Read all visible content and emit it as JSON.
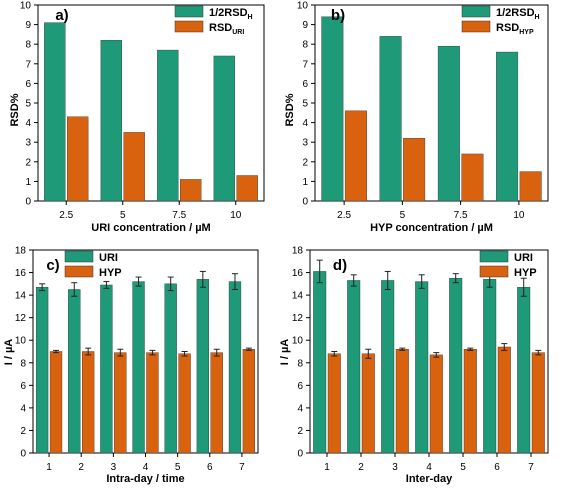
{
  "colors": {
    "series1": "#1f9a78",
    "series2": "#d9620f",
    "axis": "#000000"
  },
  "chart_data": [
    {
      "type": "bar",
      "panel_label": "a)",
      "categories": [
        "2.5",
        "5",
        "7.5",
        "10"
      ],
      "series": [
        {
          "name": "1/2RSD",
          "name_sub": "H",
          "values": [
            9.1,
            8.2,
            7.7,
            7.4
          ]
        },
        {
          "name": "RSD",
          "name_sub": "URI",
          "values": [
            4.3,
            3.5,
            1.1,
            1.3
          ]
        }
      ],
      "xlabel": "URI concentration / µM",
      "ylabel": "RSD%",
      "ylim": [
        0,
        10
      ],
      "yticks": [
        0,
        1,
        2,
        3,
        4,
        5,
        6,
        7,
        8,
        9,
        10
      ],
      "legend": "top-right",
      "grid": false
    },
    {
      "type": "bar",
      "panel_label": "b)",
      "categories": [
        "2.5",
        "5",
        "7.5",
        "10"
      ],
      "series": [
        {
          "name": "1/2RSD",
          "name_sub": "H",
          "values": [
            9.4,
            8.4,
            7.9,
            7.6
          ]
        },
        {
          "name": "RSD",
          "name_sub": "HYP",
          "values": [
            4.6,
            3.2,
            2.4,
            1.5
          ]
        }
      ],
      "xlabel": "HYP concentration / µM",
      "ylabel": "RSD%",
      "ylim": [
        0,
        10
      ],
      "yticks": [
        0,
        1,
        2,
        3,
        4,
        5,
        6,
        7,
        8,
        9,
        10
      ],
      "legend": "top-right",
      "grid": false
    },
    {
      "type": "bar",
      "panel_label": "c)",
      "categories": [
        "1",
        "2",
        "3",
        "4",
        "5",
        "6",
        "7"
      ],
      "series": [
        {
          "name": "URI",
          "values": [
            14.7,
            14.5,
            14.9,
            15.2,
            15.0,
            15.4,
            15.2
          ],
          "errors": [
            0.3,
            0.6,
            0.3,
            0.4,
            0.6,
            0.7,
            0.7
          ]
        },
        {
          "name": "HYP",
          "values": [
            9.0,
            9.0,
            8.9,
            8.9,
            8.8,
            8.9,
            9.2
          ],
          "errors": [
            0.1,
            0.3,
            0.3,
            0.2,
            0.2,
            0.3,
            0.1
          ]
        }
      ],
      "xlabel": "Intra-day / time",
      "ylabel": "I / µA",
      "ylim": [
        0,
        18
      ],
      "yticks": [
        0,
        2,
        4,
        6,
        8,
        10,
        12,
        14,
        16,
        18
      ],
      "legend": "top-left",
      "grid": false
    },
    {
      "type": "bar",
      "panel_label": "d)",
      "categories": [
        "1",
        "2",
        "3",
        "4",
        "5",
        "6",
        "7"
      ],
      "series": [
        {
          "name": "URI",
          "values": [
            16.1,
            15.3,
            15.3,
            15.2,
            15.5,
            15.4,
            14.7
          ],
          "errors": [
            1.0,
            0.5,
            0.8,
            0.6,
            0.4,
            0.7,
            0.8
          ]
        },
        {
          "name": "HYP",
          "values": [
            8.8,
            8.8,
            9.2,
            8.7,
            9.2,
            9.4,
            8.9
          ],
          "errors": [
            0.2,
            0.4,
            0.1,
            0.2,
            0.1,
            0.3,
            0.2
          ]
        }
      ],
      "xlabel": "Inter-day",
      "ylabel": "I / µA",
      "ylim": [
        0,
        18
      ],
      "yticks": [
        0,
        2,
        4,
        6,
        8,
        10,
        12,
        14,
        16,
        18
      ],
      "legend": "top-right",
      "grid": false
    }
  ]
}
